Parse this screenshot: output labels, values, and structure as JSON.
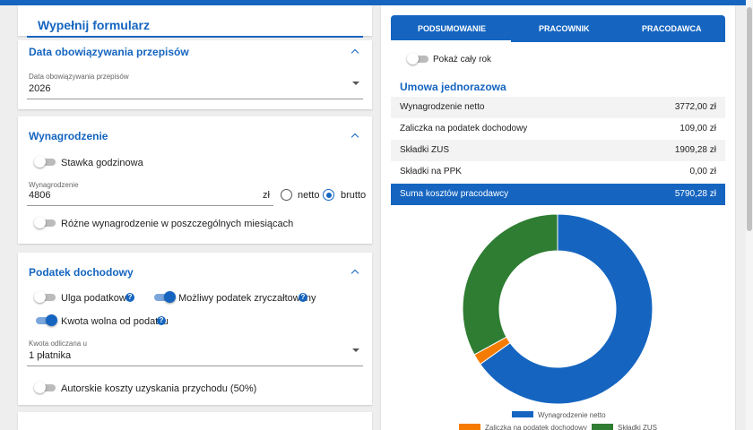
{
  "header": {
    "title": "Wypełnij formularz"
  },
  "sections": [
    {
      "title": "Data obowiązywania przepisów",
      "field_label": "Data obowiązywania przepisów",
      "field_value": "2026"
    },
    {
      "title": "Wynagrodzenie",
      "toggle": "Stawka godzinowa",
      "field_label": "Wynagrodzenie",
      "field_value": "4806",
      "unit": "zł",
      "options": [
        "netto",
        "brutto"
      ],
      "toggle2": "Różne wynagrodzenie w poszczególnych miesiącach"
    },
    {
      "title": "Podatek dochodowy",
      "toggles": [
        "Ulga podatkowa",
        "Możliwy podatek zryczałtowany",
        "Kwota wolna od podatku"
      ],
      "field_label": "Kwota odliczana u",
      "field_value": "1 płatnika",
      "toggle2": "Autorskie koszty uzyskania przychodu (50%)"
    }
  ],
  "tabs": [
    "PODSUMOWANIE",
    "PRACOWNIK",
    "PRACODAWCA"
  ],
  "summary": {
    "toggle": "Pokaż cały rok",
    "heading": "Umowa jednorazowa",
    "rows": [
      {
        "label": "Wynagrodzenie netto",
        "amount": "3772,00 zł"
      },
      {
        "label": "Zaliczka na podatek dochodowy",
        "amount": "109,00 zł"
      },
      {
        "label": "Składki ZUS",
        "amount": "1909,28 zł"
      },
      {
        "label": "Składki na PPK",
        "amount": "0,00 zł"
      }
    ],
    "total": {
      "label": "Suma kosztów pracodawcy",
      "amount": "5790,28 zł"
    }
  },
  "chart": {
    "type": "pie",
    "series": [
      {
        "name": "Wynagrodzenie netto",
        "color": "#1565c0",
        "value": 3772
      },
      {
        "name": "Zaliczka na podatek dochodowy",
        "color": "#f57c00",
        "value": 109
      },
      {
        "name": "Składki ZUS",
        "color": "#2e7d32",
        "value": 1909.28
      }
    ]
  }
}
